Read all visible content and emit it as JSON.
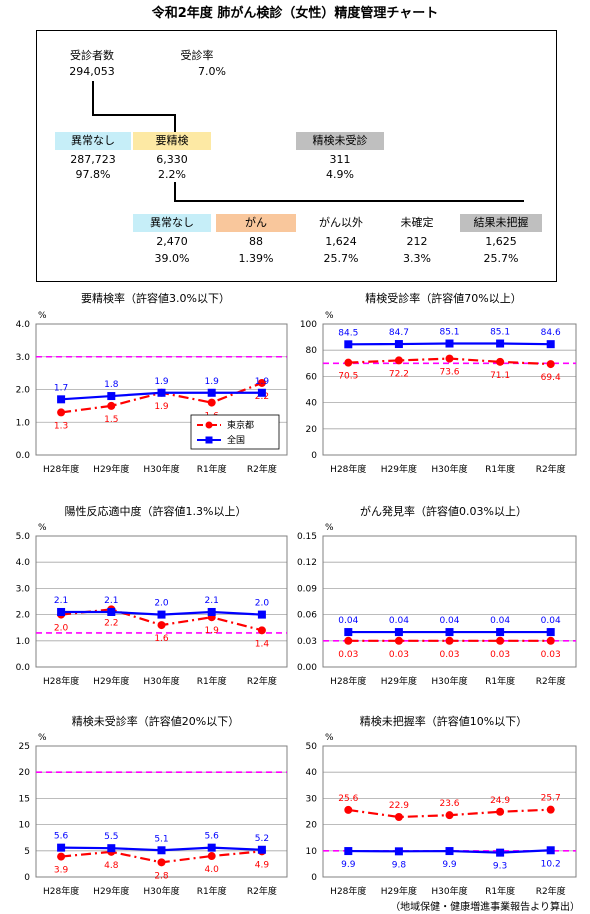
{
  "title": "令和2年度 肺がん検診（女性）精度管理チャート",
  "flow": {
    "examinees_label": "受診者数",
    "examinees_value": "294,053",
    "rate_label": "受診率",
    "rate_value": "7.0%",
    "normal_label": "異常なし",
    "normal_count": "287,723",
    "normal_pct": "97.8%",
    "detail_label": "要精検",
    "detail_count": "6,330",
    "detail_pct": "2.2%",
    "unexamined_label": "精検未受診",
    "unexamined_count": "311",
    "unexamined_pct": "4.9%",
    "results": [
      {
        "label": "異常なし",
        "count": "2,470",
        "pct": "39.0%",
        "color": "#c6eef8"
      },
      {
        "label": "がん",
        "count": "88",
        "pct": "1.39%",
        "color": "#f9c79c"
      },
      {
        "label": "がん以外",
        "count": "1,624",
        "pct": "25.7%",
        "color": ""
      },
      {
        "label": "未確定",
        "count": "212",
        "pct": "3.3%",
        "color": ""
      },
      {
        "label": "結果未把握",
        "count": "1,625",
        "pct": "25.7%",
        "color": "#bfbfbf"
      }
    ],
    "colors": {
      "normal": "#c6eef8",
      "detail": "#fde9a4",
      "unexamined": "#bfbfbf"
    }
  },
  "colors": {
    "tokyo": "#ff0000",
    "national": "#0000ff",
    "threshold": "#ff00ff"
  },
  "chart_data": [
    {
      "type": "line",
      "title": "要精検率（許容値3.0%以下）",
      "unit": "%",
      "categories": [
        "H28年度",
        "H29年度",
        "H30年度",
        "R1年度",
        "R2年度"
      ],
      "ylim": [
        0,
        4
      ],
      "yticks": [
        "0.0",
        "1.0",
        "2.0",
        "3.0",
        "4.0"
      ],
      "threshold": 3.0,
      "decimals": 1,
      "series": [
        {
          "name": "東京都",
          "values": [
            1.3,
            1.5,
            1.9,
            1.6,
            2.2
          ]
        },
        {
          "name": "全国",
          "values": [
            1.7,
            1.8,
            1.9,
            1.9,
            1.9
          ]
        }
      ],
      "legend": "bottom-right"
    },
    {
      "type": "line",
      "title": "精検受診率（許容値70%以上）",
      "unit": "%",
      "categories": [
        "H28年度",
        "H29年度",
        "H30年度",
        "R1年度",
        "R2年度"
      ],
      "ylim": [
        0,
        100
      ],
      "yticks": [
        "0",
        "20",
        "40",
        "60",
        "80",
        "100"
      ],
      "threshold": 70,
      "decimals": 1,
      "series": [
        {
          "name": "東京都",
          "values": [
            70.5,
            72.2,
            73.6,
            71.1,
            69.4
          ]
        },
        {
          "name": "全国",
          "values": [
            84.5,
            84.7,
            85.1,
            85.1,
            84.6
          ]
        }
      ]
    },
    {
      "type": "line",
      "title": "陽性反応適中度（許容値1.3%以上）",
      "unit": "%",
      "categories": [
        "H28年度",
        "H29年度",
        "H30年度",
        "R1年度",
        "R2年度"
      ],
      "ylim": [
        0,
        5
      ],
      "yticks": [
        "0.0",
        "1.0",
        "2.0",
        "3.0",
        "4.0",
        "5.0"
      ],
      "threshold": 1.3,
      "decimals": 1,
      "series": [
        {
          "name": "東京都",
          "values": [
            2.0,
            2.2,
            1.6,
            1.9,
            1.4
          ]
        },
        {
          "name": "全国",
          "values": [
            2.1,
            2.1,
            2.0,
            2.1,
            2.0
          ]
        }
      ]
    },
    {
      "type": "line",
      "title": "がん発見率（許容値0.03%以上）",
      "unit": "%",
      "categories": [
        "H28年度",
        "H29年度",
        "H30年度",
        "R1年度",
        "R2年度"
      ],
      "ylim": [
        0,
        0.15
      ],
      "yticks": [
        "0.00",
        "0.03",
        "0.06",
        "0.09",
        "0.12",
        "0.15"
      ],
      "threshold": 0.03,
      "decimals": 2,
      "series": [
        {
          "name": "東京都",
          "values": [
            0.03,
            0.03,
            0.03,
            0.03,
            0.03
          ]
        },
        {
          "name": "全国",
          "values": [
            0.04,
            0.04,
            0.04,
            0.04,
            0.04
          ]
        }
      ]
    },
    {
      "type": "line",
      "title": "精検未受診率（許容値20%以下）",
      "unit": "%",
      "categories": [
        "H28年度",
        "H29年度",
        "H30年度",
        "R1年度",
        "R2年度"
      ],
      "ylim": [
        0,
        25
      ],
      "yticks": [
        "0",
        "5",
        "10",
        "15",
        "20",
        "25"
      ],
      "threshold": 20,
      "decimals": 1,
      "series": [
        {
          "name": "東京都",
          "values": [
            3.9,
            4.8,
            2.8,
            4.0,
            4.9
          ]
        },
        {
          "name": "全国",
          "values": [
            5.6,
            5.5,
            5.1,
            5.6,
            5.2
          ]
        }
      ]
    },
    {
      "type": "line",
      "title": "精検未把握率（許容値10%以下）",
      "unit": "%",
      "categories": [
        "H28年度",
        "H29年度",
        "H30年度",
        "R1年度",
        "R2年度"
      ],
      "ylim": [
        0,
        50
      ],
      "yticks": [
        "0",
        "10",
        "20",
        "30",
        "40",
        "50"
      ],
      "threshold": 10,
      "decimals": 1,
      "series": [
        {
          "name": "東京都",
          "values": [
            25.6,
            22.9,
            23.6,
            24.9,
            25.7
          ]
        },
        {
          "name": "全国",
          "values": [
            9.9,
            9.8,
            9.9,
            9.3,
            10.2
          ]
        }
      ]
    }
  ],
  "source_note": "（地域保健・健康増進事業報告より算出）"
}
